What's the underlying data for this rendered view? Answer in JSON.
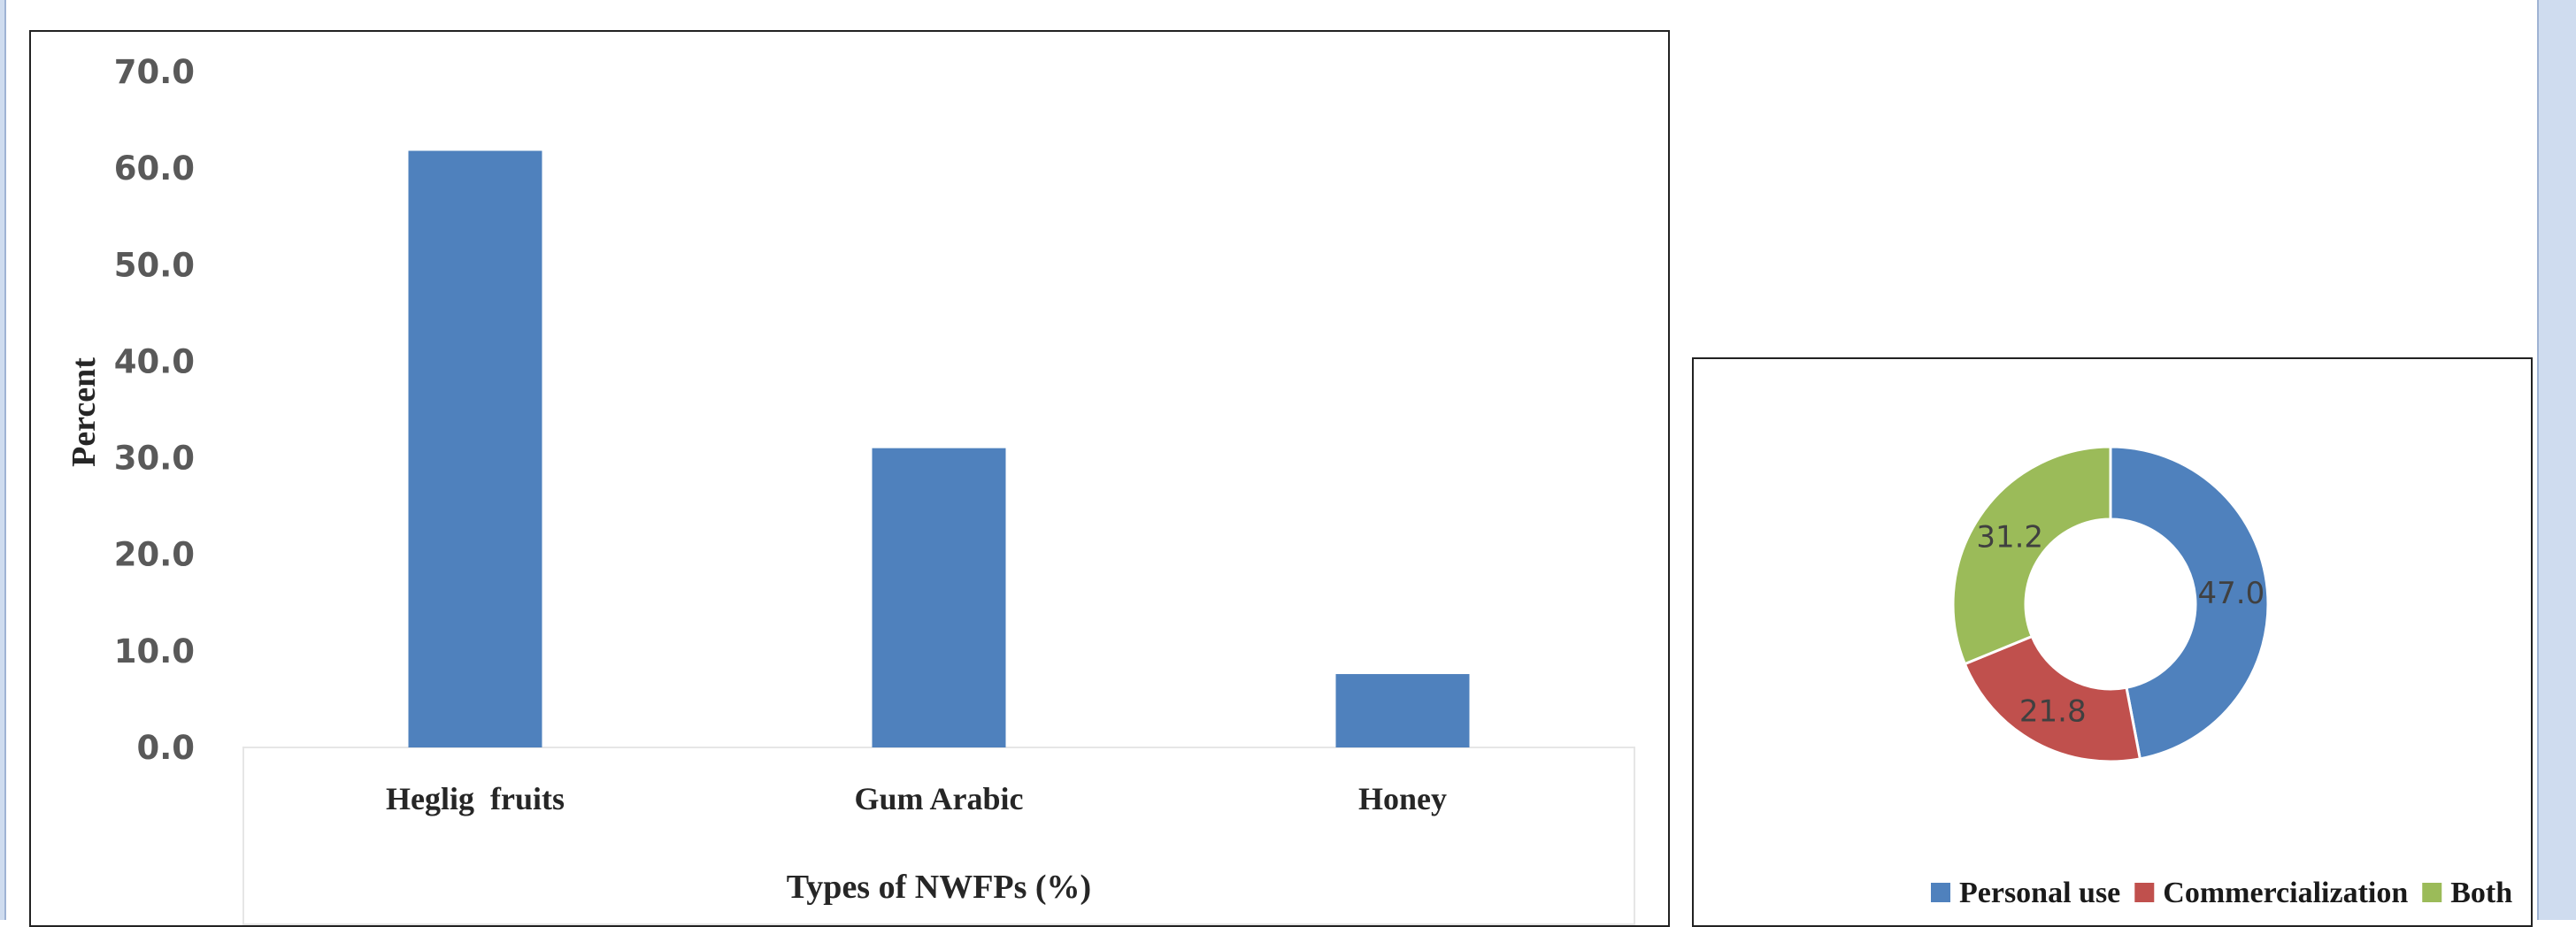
{
  "chart_data": [
    {
      "type": "bar",
      "categories": [
        "Heglig  fruits",
        "Gum Arabic",
        "Honey"
      ],
      "values": [
        61.8,
        31.0,
        7.6
      ],
      "xlabel": "Types of NWFPs (%)",
      "ylabel": "Percent",
      "ylim": [
        0,
        70
      ],
      "yticks": [
        "0.0",
        "10.0",
        "20.0",
        "30.0",
        "40.0",
        "50.0",
        "60.0",
        "70.0"
      ],
      "grid": false,
      "colors": {
        "bar": "#4f81bd"
      }
    },
    {
      "type": "pie",
      "subtype": "donut",
      "labels": [
        "Personal use",
        "Commercialization",
        "Both"
      ],
      "values": [
        47.0,
        21.8,
        31.2
      ],
      "value_labels": [
        "47.0",
        "21.8",
        "31.2"
      ],
      "colors": [
        "#4f81bd",
        "#c0504d",
        "#9bbb59"
      ],
      "legend": "bottom"
    }
  ]
}
